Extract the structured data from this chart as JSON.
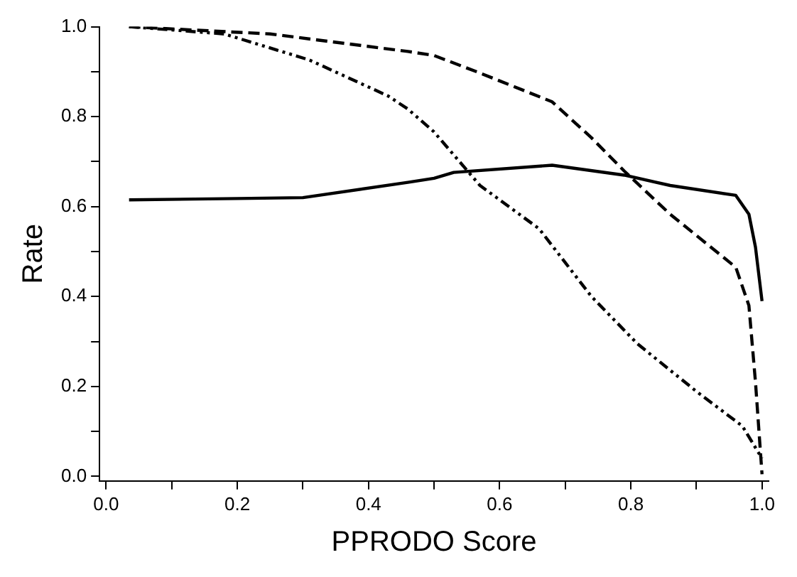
{
  "chart_data": {
    "type": "line",
    "xlabel": "PPRODO Score",
    "ylabel": "Rate",
    "xlim": [
      -0.01,
      1.01
    ],
    "ylim": [
      -0.01,
      1.0
    ],
    "xticks": [
      {
        "value": 0,
        "label": "0.0"
      },
      {
        "value": 0.1,
        "label": null
      },
      0.2,
      {
        "value": 0.3,
        "label": null
      },
      0.4,
      {
        "value": 0.5,
        "label": null
      },
      0.6,
      {
        "value": 0.7,
        "label": null
      },
      0.8,
      {
        "value": 0.9,
        "label": null
      },
      {
        "value": 1,
        "label": "1.0"
      }
    ],
    "yticks": [
      {
        "value": 0,
        "label": "0.0"
      },
      {
        "value": 0.1,
        "label": null
      },
      0.2,
      {
        "value": 0.3,
        "label": null
      },
      0.4,
      {
        "value": 0.5,
        "label": null
      },
      0.6,
      {
        "value": 0.7,
        "label": null
      },
      0.8,
      {
        "value": 0.9,
        "label": null
      },
      {
        "value": 1,
        "label": "1.0"
      }
    ],
    "grid": false,
    "legend": false,
    "marker": "none",
    "series": [
      {
        "color": "#000000",
        "line_style": "solid",
        "x": [
          0.035,
          0.2,
          0.3,
          0.46,
          0.5,
          0.53,
          0.68,
          0.79,
          0.86,
          0.96,
          0.98,
          0.99,
          1.0
        ],
        "values": [
          0.615,
          0.618,
          0.62,
          0.654,
          0.663,
          0.676,
          0.692,
          0.67,
          0.647,
          0.625,
          0.583,
          0.51,
          0.39
        ]
      },
      {
        "color": "#000000",
        "line_style": "dashed",
        "x": [
          0.035,
          0.25,
          0.46,
          0.5,
          0.57,
          0.68,
          0.74,
          0.79,
          0.86,
          0.96,
          0.98,
          0.99,
          1.0
        ],
        "values": [
          1.0,
          0.984,
          0.945,
          0.936,
          0.897,
          0.833,
          0.753,
          0.679,
          0.583,
          0.465,
          0.38,
          0.21,
          0.005
        ]
      },
      {
        "color": "#000000",
        "line_style": "dotted",
        "x": [
          0.035,
          0.18,
          0.31,
          0.43,
          0.46,
          0.5,
          0.57,
          0.66,
          0.74,
          0.81,
          0.9,
          0.97,
          1.0
        ],
        "values": [
          1.0,
          0.984,
          0.926,
          0.846,
          0.817,
          0.766,
          0.647,
          0.551,
          0.4,
          0.295,
          0.189,
          0.112,
          0.04
        ]
      }
    ]
  }
}
